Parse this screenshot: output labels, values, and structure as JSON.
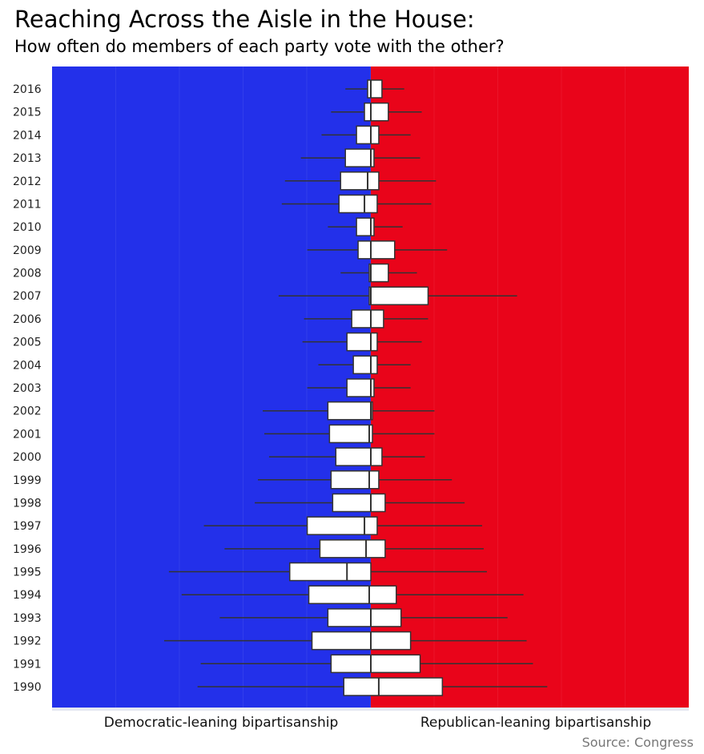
{
  "title": "Reaching Across the Aisle in the House:",
  "subtitle": "How often do members of each party vote with the other?",
  "source": "Source: Congress",
  "colors": {
    "democratic": "#2330ea",
    "republican": "#e9041a",
    "box_fill": "#ffffff",
    "box_stroke": "#333333",
    "whisker": "#333333"
  },
  "chart_data": {
    "type": "box",
    "orientation": "horizontal",
    "x_labels": {
      "left": "Democratic-leaning bipartisanship",
      "right": "Republican-leaning bipartisanship"
    },
    "xlim": [
      -1,
      1
    ],
    "center": 0,
    "years": [
      {
        "year": "2016",
        "lo_whisker": -0.08,
        "q1": -0.01,
        "median": 0.0,
        "q3": 0.035,
        "hi_whisker": 0.105
      },
      {
        "year": "2015",
        "lo_whisker": -0.125,
        "q1": -0.02,
        "median": 0.0,
        "q3": 0.055,
        "hi_whisker": 0.16
      },
      {
        "year": "2014",
        "lo_whisker": -0.155,
        "q1": -0.045,
        "median": 0.0,
        "q3": 0.025,
        "hi_whisker": 0.125
      },
      {
        "year": "2013",
        "lo_whisker": -0.22,
        "q1": -0.08,
        "median": 0.0,
        "q3": 0.01,
        "hi_whisker": 0.155
      },
      {
        "year": "2012",
        "lo_whisker": -0.27,
        "q1": -0.095,
        "median": -0.01,
        "q3": 0.025,
        "hi_whisker": 0.205
      },
      {
        "year": "2011",
        "lo_whisker": -0.28,
        "q1": -0.1,
        "median": -0.02,
        "q3": 0.02,
        "hi_whisker": 0.19
      },
      {
        "year": "2010",
        "lo_whisker": -0.135,
        "q1": -0.045,
        "median": 0.0,
        "q3": 0.01,
        "hi_whisker": 0.1
      },
      {
        "year": "2009",
        "lo_whisker": -0.2,
        "q1": -0.04,
        "median": 0.0,
        "q3": 0.075,
        "hi_whisker": 0.24
      },
      {
        "year": "2008",
        "lo_whisker": -0.095,
        "q1": -0.005,
        "median": 0.0,
        "q3": 0.055,
        "hi_whisker": 0.145
      },
      {
        "year": "2007",
        "lo_whisker": -0.29,
        "q1": -0.005,
        "median": 0.0,
        "q3": 0.18,
        "hi_whisker": 0.46
      },
      {
        "year": "2006",
        "lo_whisker": -0.21,
        "q1": -0.06,
        "median": 0.0,
        "q3": 0.04,
        "hi_whisker": 0.18
      },
      {
        "year": "2005",
        "lo_whisker": -0.215,
        "q1": -0.075,
        "median": 0.0,
        "q3": 0.02,
        "hi_whisker": 0.16
      },
      {
        "year": "2004",
        "lo_whisker": -0.165,
        "q1": -0.055,
        "median": 0.0,
        "q3": 0.02,
        "hi_whisker": 0.125
      },
      {
        "year": "2003",
        "lo_whisker": -0.2,
        "q1": -0.075,
        "median": 0.0,
        "q3": 0.01,
        "hi_whisker": 0.125
      },
      {
        "year": "2002",
        "lo_whisker": -0.34,
        "q1": -0.135,
        "median": 0.0,
        "q3": 0.005,
        "hi_whisker": 0.2
      },
      {
        "year": "2001",
        "lo_whisker": -0.335,
        "q1": -0.13,
        "median": -0.005,
        "q3": 0.005,
        "hi_whisker": 0.2
      },
      {
        "year": "2000",
        "lo_whisker": -0.32,
        "q1": -0.11,
        "median": 0.0,
        "q3": 0.035,
        "hi_whisker": 0.17
      },
      {
        "year": "1999",
        "lo_whisker": -0.355,
        "q1": -0.125,
        "median": -0.005,
        "q3": 0.025,
        "hi_whisker": 0.255
      },
      {
        "year": "1998",
        "lo_whisker": -0.365,
        "q1": -0.12,
        "median": 0.0,
        "q3": 0.045,
        "hi_whisker": 0.295
      },
      {
        "year": "1997",
        "lo_whisker": -0.525,
        "q1": -0.2,
        "median": -0.02,
        "q3": 0.02,
        "hi_whisker": 0.35
      },
      {
        "year": "1996",
        "lo_whisker": -0.46,
        "q1": -0.16,
        "median": -0.015,
        "q3": 0.045,
        "hi_whisker": 0.355
      },
      {
        "year": "1995",
        "lo_whisker": -0.635,
        "q1": -0.255,
        "median": -0.075,
        "q3": 0.0,
        "hi_whisker": 0.365
      },
      {
        "year": "1994",
        "lo_whisker": -0.595,
        "q1": -0.195,
        "median": -0.005,
        "q3": 0.08,
        "hi_whisker": 0.48
      },
      {
        "year": "1993",
        "lo_whisker": -0.475,
        "q1": -0.135,
        "median": 0.0,
        "q3": 0.095,
        "hi_whisker": 0.43
      },
      {
        "year": "1992",
        "lo_whisker": -0.65,
        "q1": -0.185,
        "median": 0.0,
        "q3": 0.125,
        "hi_whisker": 0.49
      },
      {
        "year": "1991",
        "lo_whisker": -0.535,
        "q1": -0.125,
        "median": 0.0,
        "q3": 0.155,
        "hi_whisker": 0.51
      },
      {
        "year": "1990",
        "lo_whisker": -0.545,
        "q1": -0.085,
        "median": 0.025,
        "q3": 0.225,
        "hi_whisker": 0.555
      }
    ]
  }
}
